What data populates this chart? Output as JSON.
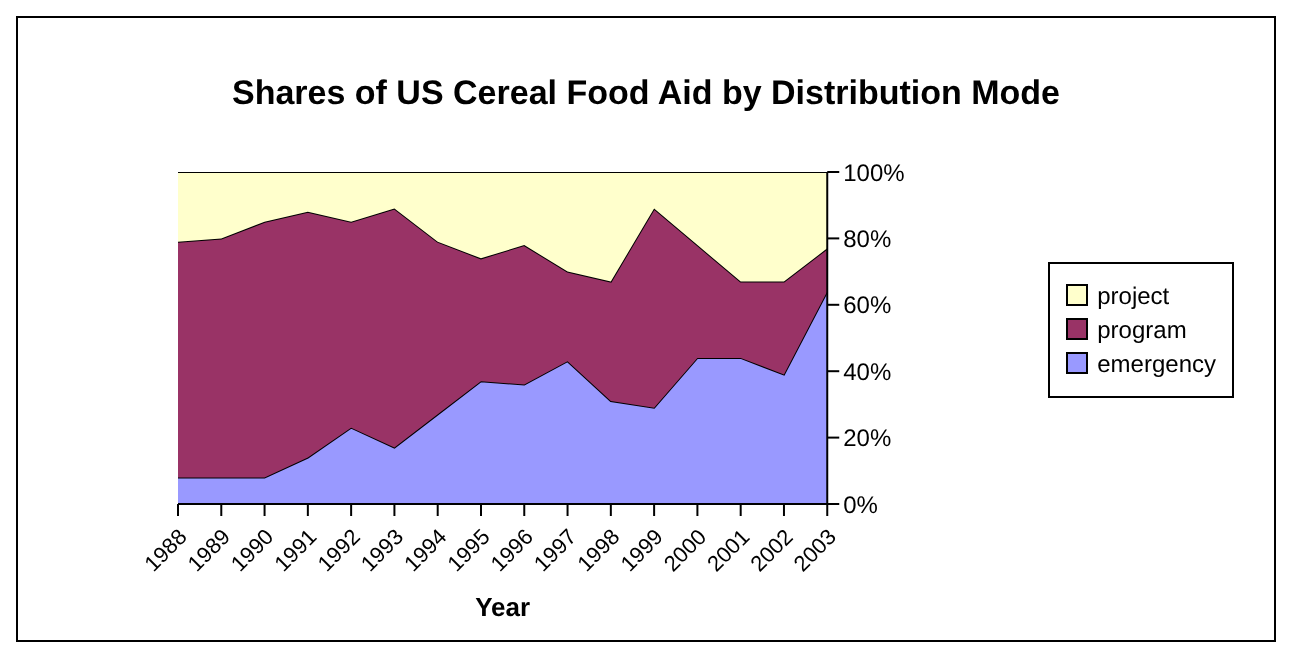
{
  "chart_data": {
    "type": "area",
    "title": "Shares of US Cereal Food Aid by Distribution Mode",
    "xlabel": "Year",
    "categories": [
      "1988",
      "1989",
      "1990",
      "1991",
      "1992",
      "1993",
      "1994",
      "1995",
      "1996",
      "1997",
      "1998",
      "1999",
      "2000",
      "2001",
      "2002",
      "2003"
    ],
    "stacked": true,
    "series": [
      {
        "name": "emergency",
        "color": "#9999ff",
        "values": [
          8,
          8,
          8,
          14,
          23,
          17,
          27,
          37,
          36,
          43,
          31,
          29,
          44,
          44,
          39,
          64
        ]
      },
      {
        "name": "program",
        "color": "#993366",
        "values": [
          71,
          72,
          77,
          74,
          62,
          72,
          52,
          37,
          42,
          27,
          36,
          60,
          34,
          23,
          28,
          13
        ]
      },
      {
        "name": "project",
        "color": "#ffffcc",
        "values": [
          21,
          20,
          15,
          12,
          15,
          11,
          21,
          26,
          22,
          30,
          33,
          11,
          22,
          33,
          33,
          23
        ]
      }
    ],
    "ylim": [
      0,
      100
    ],
    "yticks": [
      {
        "value": 0,
        "label": "0%"
      },
      {
        "value": 20,
        "label": "20%"
      },
      {
        "value": 40,
        "label": "40%"
      },
      {
        "value": 60,
        "label": "60%"
      },
      {
        "value": 80,
        "label": "80%"
      },
      {
        "value": 100,
        "label": "100%"
      }
    ],
    "grid": false,
    "legend": "right"
  }
}
